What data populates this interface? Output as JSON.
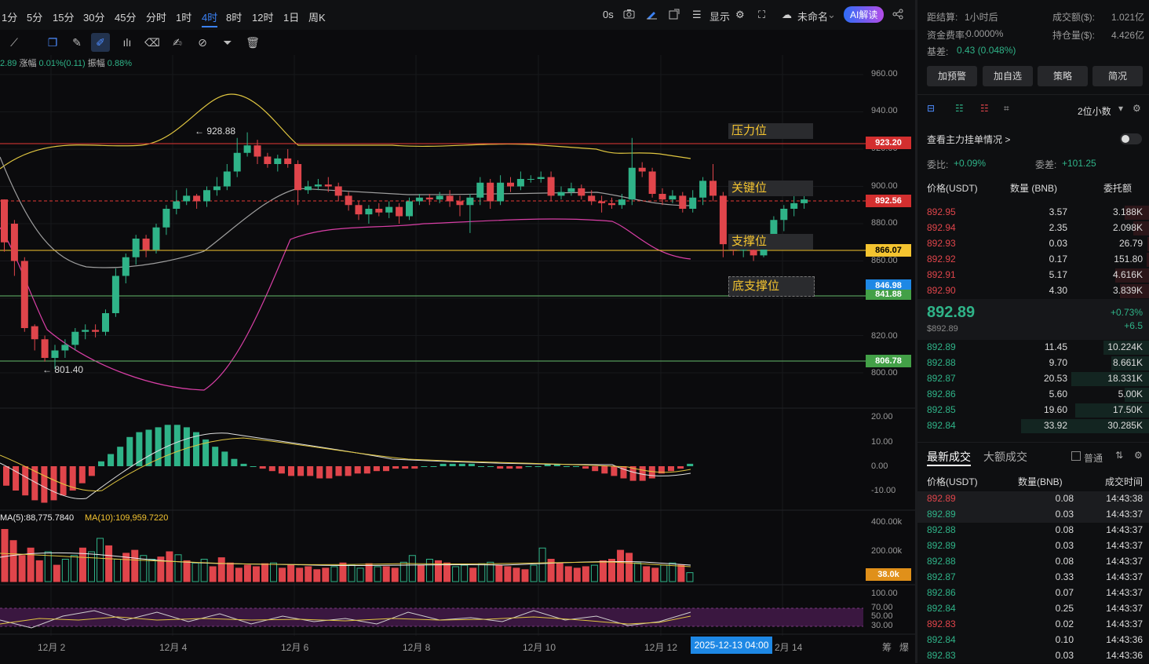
{
  "timeframes": [
    "1分",
    "5分",
    "15分",
    "30分",
    "45分",
    "分时",
    "1时",
    "4时",
    "8时",
    "12时",
    "1日",
    "周K"
  ],
  "active_timeframe": "4时",
  "topbar_right": {
    "zero_s": "0s",
    "display": "显示",
    "layout_name": "未命名",
    "ai_label": "AI解读"
  },
  "ohlc": {
    "price_fragment": "2.89",
    "change_label": "涨幅",
    "change_value": "0.01%(0.11)",
    "amp_label": "振幅",
    "amp_value": "0.88%"
  },
  "price_axis": [
    "960.00",
    "940.00",
    "920.00",
    "900.00",
    "880.00",
    "860.00",
    "820.00",
    "800.00"
  ],
  "price_labels": [
    {
      "text": "923.20",
      "bg": "#d32f2f",
      "fg": "#ffffff"
    },
    {
      "text": "892.56",
      "bg": "#d32f2f",
      "fg": "#ffffff"
    },
    {
      "text": "866.07",
      "bg": "#f4c430",
      "fg": "#000000"
    },
    {
      "text": "846.98",
      "bg": "#1e88e5",
      "fg": "#ffffff"
    },
    {
      "text": "841.88",
      "bg": "#43a047",
      "fg": "#ffffff"
    },
    {
      "text": "806.78",
      "bg": "#43a047",
      "fg": "#ffffff"
    }
  ],
  "zones": [
    "压力位",
    "关键位",
    "支撑位",
    "底支撑位"
  ],
  "annotations": {
    "high": "← 928.88",
    "low": "← 801.40"
  },
  "macd_axis": [
    "20.00",
    "10.00",
    "0.00",
    "-10.00"
  ],
  "volume": {
    "ma5": "MA(5):88,775.7840",
    "ma10": "MA(10):109,959.7220",
    "axis": [
      "400.00k",
      "200.00k"
    ],
    "current": "38.0k"
  },
  "rsi_axis": [
    "100.00",
    "70.00",
    "50.00",
    "30.00"
  ],
  "x_axis": [
    "12月 2",
    "12月 4",
    "12月 6",
    "12月 8",
    "12月 10",
    "12月 12",
    "2月 14"
  ],
  "crosshair_time": "2025-12-13 04:00",
  "bottom_right": [
    "筹",
    "爆"
  ],
  "colors": {
    "up": "#2fb388",
    "down": "#e0454b",
    "accent": "#1e88e5",
    "zone_text": "#f4c430"
  },
  "panel": {
    "settle_label": "距结算:",
    "settle_value": "1小时后",
    "turnover_label": "成交额($):",
    "turnover_value": "1.021亿",
    "funding_label": "资金费率:",
    "funding_value": "0.0000%",
    "oi_label": "持仓量($):",
    "oi_value": "4.426亿",
    "basis_label": "基差:",
    "basis_value": "0.43 (0.048%)",
    "buttons": [
      "加预警",
      "加自选",
      "策略",
      "简况"
    ],
    "decimals": "2位小数",
    "main_orders": "查看主力挂单情况 >",
    "ratio_label": "委比:",
    "ratio_value": "+0.09%",
    "diff_label": "委差:",
    "diff_value": "+101.25",
    "book_headers": [
      "价格(USDT)",
      "数量 (BNB)",
      "委托额"
    ],
    "asks": [
      {
        "p": "892.95",
        "q": "3.57",
        "v": "3.188K",
        "w": 0.18
      },
      {
        "p": "892.94",
        "q": "2.35",
        "v": "2.098K",
        "w": 0.12
      },
      {
        "p": "892.93",
        "q": "0.03",
        "v": "26.79",
        "w": 0.01
      },
      {
        "p": "892.92",
        "q": "0.17",
        "v": "151.80",
        "w": 0.02
      },
      {
        "p": "892.91",
        "q": "5.17",
        "v": "4.616K",
        "w": 0.25
      },
      {
        "p": "892.90",
        "q": "4.30",
        "v": "3.839K",
        "w": 0.22
      }
    ],
    "last_price": "892.89",
    "last_price_usd": "$892.89",
    "last_change": "+0.73%",
    "last_change_abs": "+6.5",
    "bids": [
      {
        "p": "892.89",
        "q": "11.45",
        "v": "10.224K",
        "w": 0.34
      },
      {
        "p": "892.88",
        "q": "9.70",
        "v": "8.661K",
        "w": 0.28
      },
      {
        "p": "892.87",
        "q": "20.53",
        "v": "18.331K",
        "w": 0.58
      },
      {
        "p": "892.86",
        "q": "5.60",
        "v": "5.00K",
        "w": 0.18
      },
      {
        "p": "892.85",
        "q": "19.60",
        "v": "17.50K",
        "w": 0.55
      },
      {
        "p": "892.84",
        "q": "33.92",
        "v": "30.285K",
        "w": 0.96
      }
    ],
    "trade_tabs": [
      "最新成交",
      "大额成交"
    ],
    "trade_filter": "普通",
    "trade_headers": [
      "价格(USDT)",
      "数量(BNB)",
      "成交时间"
    ],
    "trades": [
      {
        "p": "892.89",
        "q": "0.08",
        "t": "14:43:38",
        "side": "down"
      },
      {
        "p": "892.89",
        "q": "0.03",
        "t": "14:43:37",
        "side": "up"
      },
      {
        "p": "892.88",
        "q": "0.08",
        "t": "14:43:37",
        "side": "up"
      },
      {
        "p": "892.89",
        "q": "0.03",
        "t": "14:43:37",
        "side": "up"
      },
      {
        "p": "892.88",
        "q": "0.08",
        "t": "14:43:37",
        "side": "up"
      },
      {
        "p": "892.87",
        "q": "0.33",
        "t": "14:43:37",
        "side": "up"
      },
      {
        "p": "892.86",
        "q": "0.07",
        "t": "14:43:37",
        "side": "up"
      },
      {
        "p": "892.84",
        "q": "0.25",
        "t": "14:43:37",
        "side": "up"
      },
      {
        "p": "892.83",
        "q": "0.02",
        "t": "14:43:37",
        "side": "down"
      },
      {
        "p": "892.84",
        "q": "0.10",
        "t": "14:43:36",
        "side": "up"
      },
      {
        "p": "892.83",
        "q": "0.03",
        "t": "14:43:36",
        "side": "up"
      }
    ]
  }
}
